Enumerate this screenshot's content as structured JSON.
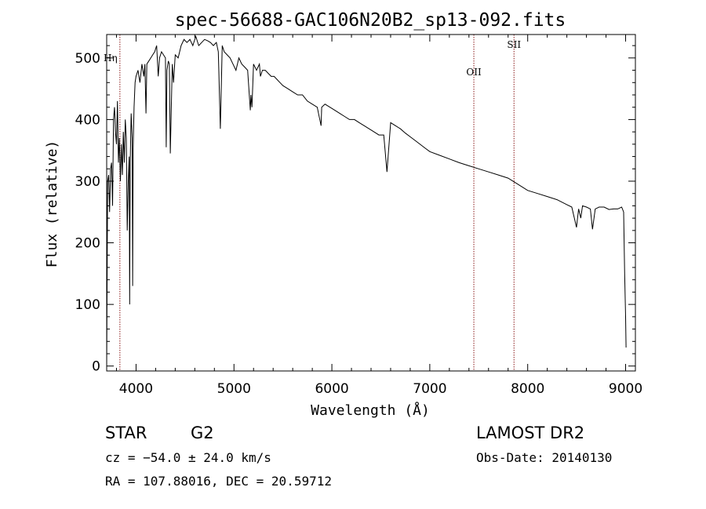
{
  "chart_data": {
    "type": "line",
    "title": "spec-56688-GAC106N20B2_sp13-092.fits",
    "xlabel": "Wavelength (Å)",
    "ylabel": "Flux (relative)",
    "xlim": [
      3700,
      9100
    ],
    "ylim": [
      -8,
      538
    ],
    "x_ticks": [
      4000,
      5000,
      6000,
      7000,
      8000,
      9000
    ],
    "y_ticks": [
      0,
      100,
      200,
      300,
      400,
      500
    ],
    "grid": false,
    "line_color": "#000000",
    "marker_color": "#8b1a1a",
    "spectral_lines": [
      {
        "name": "Hη",
        "wavelength": 3835
      },
      {
        "name": "OII",
        "wavelength": 7450
      },
      {
        "name": "SII",
        "wavelength": 7860
      }
    ],
    "series": [
      {
        "x": [
          3700,
          3710,
          3720,
          3730,
          3740,
          3750,
          3760,
          3770,
          3780,
          3790,
          3800,
          3810,
          3820,
          3830,
          3840,
          3850,
          3860,
          3870,
          3880,
          3890,
          3900,
          3910,
          3920,
          3930,
          3935,
          3940,
          3950,
          3960,
          3965,
          3970,
          3980,
          3990,
          4000,
          4020,
          4040,
          4060,
          4080,
          4090,
          4101,
          4110,
          4130,
          4150,
          4170,
          4190,
          4210,
          4226,
          4240,
          4260,
          4280,
          4300,
          4308,
          4315,
          4330,
          4340,
          4350,
          4370,
          4383,
          4400,
          4430,
          4460,
          4490,
          4520,
          4550,
          4580,
          4610,
          4640,
          4670,
          4700,
          4730,
          4760,
          4790,
          4820,
          4840,
          4861,
          4880,
          4900,
          4930,
          4960,
          4990,
          5020,
          5050,
          5080,
          5110,
          5140,
          5167,
          5173,
          5184,
          5200,
          5230,
          5260,
          5270,
          5290,
          5320,
          5350,
          5380,
          5410,
          5440,
          5470,
          5500,
          5550,
          5600,
          5650,
          5700,
          5750,
          5800,
          5850,
          5890,
          5896,
          5930,
          5980,
          6030,
          6080,
          6130,
          6180,
          6230,
          6280,
          6330,
          6380,
          6430,
          6480,
          6530,
          6563,
          6600,
          6650,
          6700,
          6750,
          6800,
          6850,
          6900,
          6950,
          7000,
          7100,
          7200,
          7300,
          7400,
          7500,
          7600,
          7700,
          7800,
          7900,
          8000,
          8100,
          8200,
          8300,
          8400,
          8450,
          8498,
          8520,
          8542,
          8560,
          8600,
          8640,
          8662,
          8690,
          8730,
          8780,
          8830,
          8880,
          8920,
          8960,
          8980,
          8990,
          9000,
          9005
        ],
        "y": [
          0,
          300,
          310,
          250,
          320,
          330,
          260,
          400,
          420,
          380,
          360,
          430,
          330,
          370,
          300,
          360,
          310,
          380,
          330,
          400,
          370,
          220,
          300,
          340,
          100,
          330,
          410,
          370,
          130,
          350,
          420,
          460,
          470,
          480,
          460,
          490,
          470,
          490,
          410,
          490,
          495,
          500,
          505,
          510,
          520,
          470,
          500,
          510,
          505,
          500,
          355,
          480,
          495,
          490,
          345,
          490,
          460,
          505,
          500,
          520,
          530,
          525,
          530,
          520,
          535,
          520,
          525,
          530,
          528,
          525,
          520,
          525,
          510,
          385,
          520,
          510,
          505,
          500,
          490,
          480,
          500,
          490,
          485,
          480,
          415,
          440,
          420,
          490,
          480,
          490,
          470,
          480,
          480,
          475,
          470,
          470,
          465,
          460,
          455,
          450,
          445,
          440,
          440,
          430,
          425,
          420,
          390,
          420,
          425,
          420,
          415,
          410,
          405,
          400,
          400,
          395,
          390,
          385,
          380,
          375,
          375,
          315,
          395,
          390,
          385,
          378,
          372,
          366,
          360,
          354,
          348,
          342,
          336,
          330,
          325,
          320,
          315,
          310,
          305,
          295,
          285,
          280,
          275,
          270,
          262,
          258,
          225,
          255,
          240,
          260,
          258,
          255,
          222,
          255,
          258,
          258,
          254,
          255,
          255,
          258,
          250,
          150,
          80,
          30
        ]
      }
    ]
  },
  "info": {
    "object_class": "STAR",
    "subclass": "G2",
    "survey": "LAMOST DR2",
    "cz": "cz = −54.0 ± 24.0 km/s",
    "obs_date": "Obs-Date: 20140130",
    "coords": "RA = 107.88016, DEC =  20.59712"
  }
}
